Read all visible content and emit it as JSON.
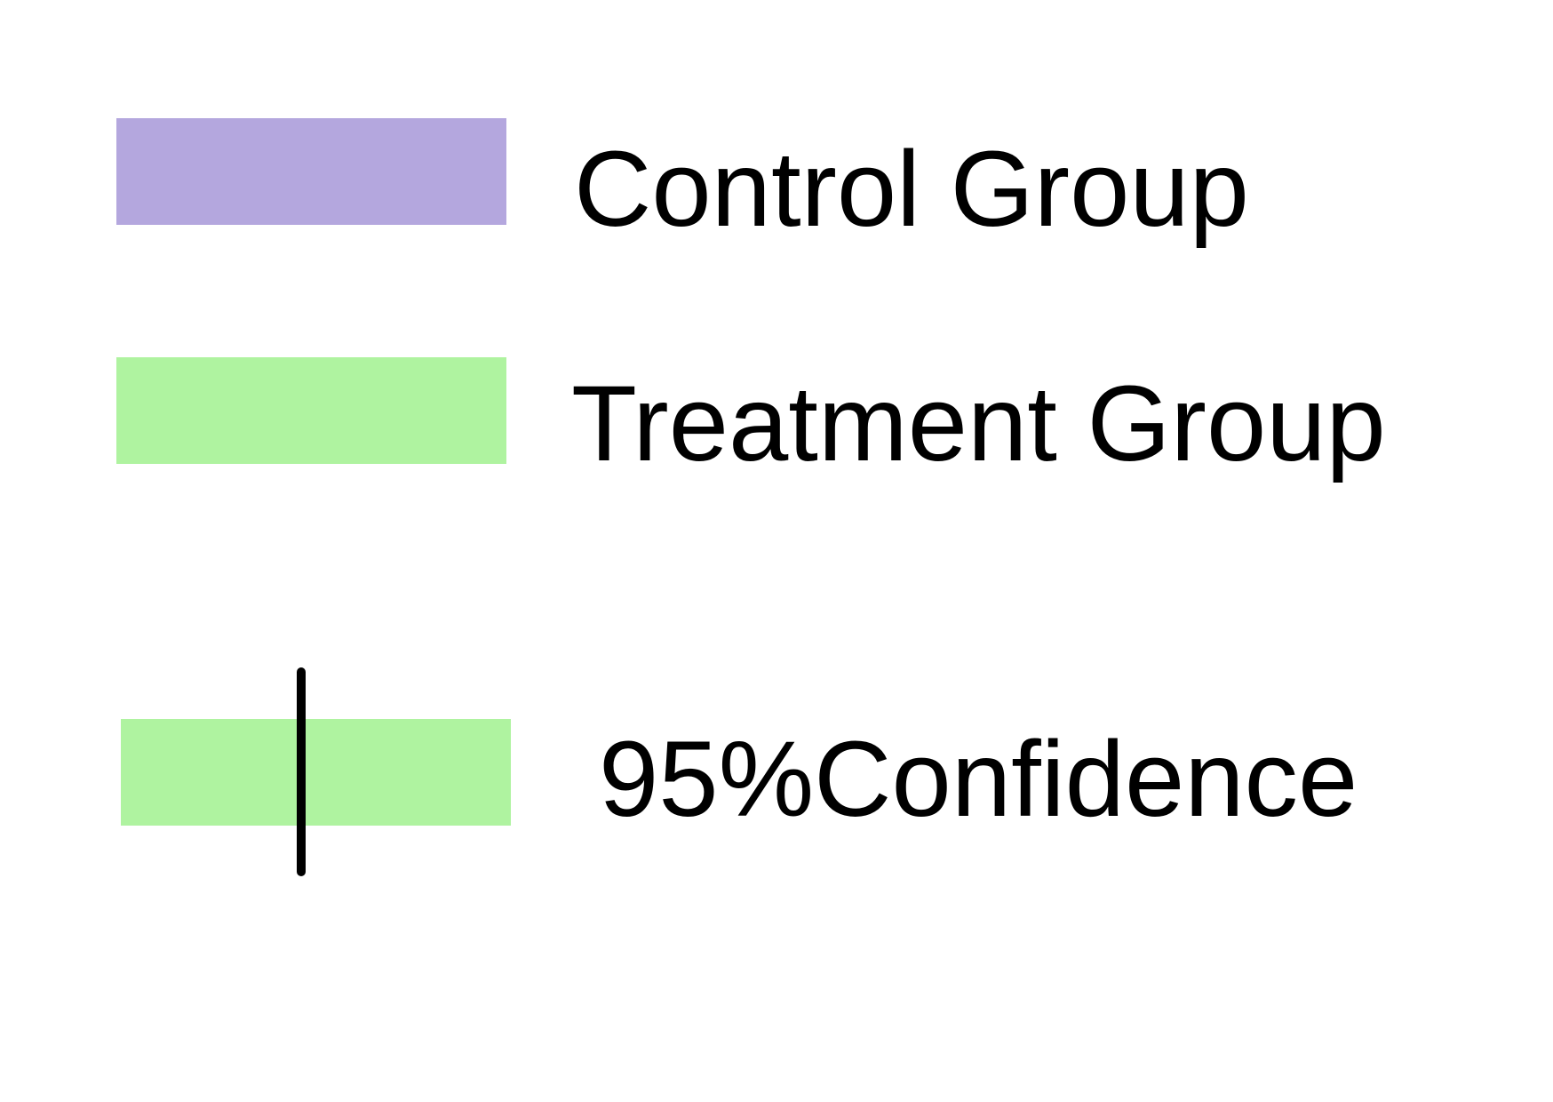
{
  "chart_data": {
    "type": "bar",
    "legend": {
      "items": [
        {
          "label": "Control Group",
          "color": "#b4a7de",
          "kind": "swatch"
        },
        {
          "label": "Treatment Group",
          "color": "#aff3a0",
          "kind": "swatch"
        },
        {
          "label": "95%Confidence",
          "color": "#aff3a0",
          "line_color": "#000000",
          "kind": "swatch-with-errorbar"
        }
      ]
    }
  }
}
